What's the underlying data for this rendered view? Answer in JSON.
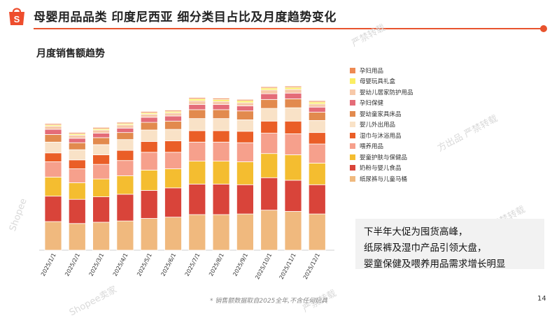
{
  "page": {
    "title": "母婴用品品类 印度尼西亚 细分类目占比及月度趋势变化",
    "subtitle": "月度销售额趋势",
    "footnote": "* 销售额数据取自2025全年,不含任何玩具",
    "page_number": "14",
    "insight_lines": [
      "下半年大促为囤货高峰，",
      "纸尿裤及湿巾产品引领大盘，",
      "婴童保健及喂养用品需求增长明显"
    ],
    "watermarks": [
      "Shopee",
      "Shopee卖家",
      "严禁转载",
      "方出品 严禁转载",
      "严禁转载",
      "严禁转载"
    ],
    "accent_color": "#e8532d"
  },
  "chart_data": {
    "type": "bar",
    "stacked": true,
    "categories": [
      "2025/1/1",
      "2025/2/1",
      "2025/3/1",
      "2025/4/1",
      "2025/5/1",
      "2025/6/1",
      "2025/7/1",
      "2025/8/1",
      "2025/9/1",
      "2025/10/1",
      "2025/11/1",
      "2025/12/1"
    ],
    "series": [
      {
        "name": "纸尿裤与儿童马桶",
        "color": "#f0b97e",
        "values": [
          45,
          42,
          44,
          46,
          50,
          52,
          56,
          56,
          57,
          63,
          61,
          57
        ]
      },
      {
        "name": "奶粉与婴儿食品",
        "color": "#d9443a",
        "values": [
          40,
          38,
          40,
          42,
          44,
          46,
          48,
          48,
          46,
          51,
          49,
          46
        ]
      },
      {
        "name": "婴童护肤与保健品",
        "color": "#f4bd30",
        "values": [
          30,
          26,
          28,
          29,
          32,
          30,
          36,
          36,
          36,
          38,
          40,
          34
        ]
      },
      {
        "name": "喂养用品",
        "color": "#f6a08c",
        "values": [
          24,
          22,
          23,
          24,
          28,
          26,
          30,
          30,
          30,
          32,
          33,
          30
        ]
      },
      {
        "name": "湿巾与沐浴用品",
        "color": "#ea5e27",
        "values": [
          14,
          14,
          15,
          16,
          17,
          18,
          18,
          18,
          18,
          19,
          20,
          18
        ]
      },
      {
        "name": "婴儿外出用品",
        "color": "#f9e2c7",
        "values": [
          17,
          16,
          16,
          17,
          18,
          18,
          19,
          19,
          18,
          20,
          21,
          19
        ]
      },
      {
        "name": "婴幼童家具床品",
        "color": "#e28a4e",
        "values": [
          12,
          11,
          11,
          11,
          12,
          13,
          14,
          14,
          14,
          14,
          14,
          13
        ]
      },
      {
        "name": "孕妇保健",
        "color": "#e46c78",
        "values": [
          8,
          7,
          7,
          7,
          8,
          8,
          8,
          8,
          8,
          9,
          9,
          8
        ]
      },
      {
        "name": "婴幼儿居家防护用品",
        "color": "#f7c9a9",
        "values": [
          5,
          5,
          5,
          5,
          5,
          5,
          6,
          5,
          5,
          6,
          6,
          5
        ]
      },
      {
        "name": "母婴玩具礼盒",
        "color": "#fbee63",
        "values": [
          2,
          2,
          2,
          2,
          2,
          2,
          3,
          3,
          3,
          3,
          3,
          3
        ]
      },
      {
        "name": "孕妇用品",
        "color": "#ee8a53",
        "values": [
          2,
          2,
          2,
          2,
          2,
          2,
          2,
          2,
          2,
          2,
          2,
          2
        ]
      }
    ],
    "legend_position": "right",
    "grid": false,
    "ylim": [
      0,
      300
    ]
  }
}
